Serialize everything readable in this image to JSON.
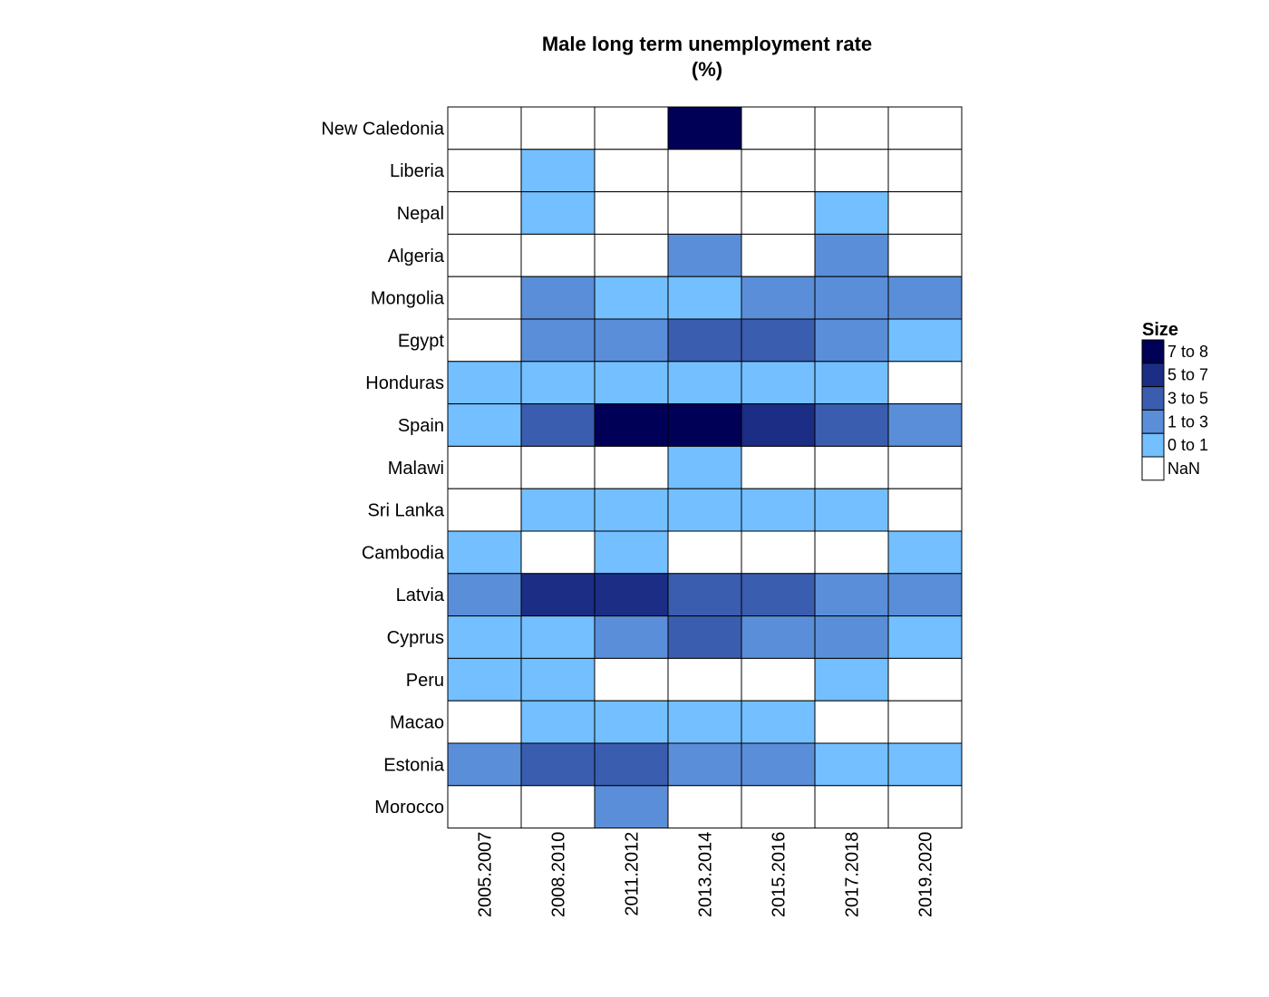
{
  "chart_data": {
    "type": "heatmap",
    "title_line1": "Male long term unemployment rate",
    "title_line2": "(%)",
    "x": [
      "2005.2007",
      "2008.2010",
      "2011.2012",
      "2013.2014",
      "2015.2016",
      "2017.2018",
      "2019.2020"
    ],
    "y": [
      "New Caledonia",
      "Liberia",
      "Nepal",
      "Algeria",
      "Mongolia",
      "Egypt",
      "Honduras",
      "Spain",
      "Malawi",
      "Sri Lanka",
      "Cambodia",
      "Latvia",
      "Cyprus",
      "Peru",
      "Macao",
      "Estonia",
      "Morocco"
    ],
    "cells": [
      [
        "NaN",
        "NaN",
        "NaN",
        "7 to 8",
        "NaN",
        "NaN",
        "NaN"
      ],
      [
        "NaN",
        "0 to 1",
        "NaN",
        "NaN",
        "NaN",
        "NaN",
        "NaN"
      ],
      [
        "NaN",
        "0 to 1",
        "NaN",
        "NaN",
        "NaN",
        "0 to 1",
        "NaN"
      ],
      [
        "NaN",
        "NaN",
        "NaN",
        "1 to 3",
        "NaN",
        "1 to 3",
        "NaN"
      ],
      [
        "NaN",
        "1 to 3",
        "0 to 1",
        "0 to 1",
        "1 to 3",
        "1 to 3",
        "1 to 3"
      ],
      [
        "NaN",
        "1 to 3",
        "1 to 3",
        "3 to 5",
        "3 to 5",
        "1 to 3",
        "0 to 1"
      ],
      [
        "0 to 1",
        "0 to 1",
        "0 to 1",
        "0 to 1",
        "0 to 1",
        "0 to 1",
        "NaN"
      ],
      [
        "0 to 1",
        "3 to 5",
        "7 to 8",
        "7 to 8",
        "5 to 7",
        "3 to 5",
        "1 to 3"
      ],
      [
        "NaN",
        "NaN",
        "NaN",
        "0 to 1",
        "NaN",
        "NaN",
        "NaN"
      ],
      [
        "NaN",
        "0 to 1",
        "0 to 1",
        "0 to 1",
        "0 to 1",
        "0 to 1",
        "NaN"
      ],
      [
        "0 to 1",
        "NaN",
        "0 to 1",
        "NaN",
        "NaN",
        "NaN",
        "0 to 1"
      ],
      [
        "1 to 3",
        "5 to 7",
        "5 to 7",
        "3 to 5",
        "3 to 5",
        "1 to 3",
        "1 to 3"
      ],
      [
        "0 to 1",
        "0 to 1",
        "1 to 3",
        "3 to 5",
        "1 to 3",
        "1 to 3",
        "0 to 1"
      ],
      [
        "0 to 1",
        "0 to 1",
        "NaN",
        "NaN",
        "NaN",
        "0 to 1",
        "NaN"
      ],
      [
        "NaN",
        "0 to 1",
        "0 to 1",
        "0 to 1",
        "0 to 1",
        "NaN",
        "NaN"
      ],
      [
        "1 to 3",
        "3 to 5",
        "3 to 5",
        "1 to 3",
        "1 to 3",
        "0 to 1",
        "0 to 1"
      ],
      [
        "NaN",
        "NaN",
        "1 to 3",
        "NaN",
        "NaN",
        "NaN",
        "NaN"
      ]
    ],
    "legend": {
      "title": "Size",
      "placement": "right",
      "items": [
        {
          "label": "7 to 8",
          "color": "#000057"
        },
        {
          "label": "5 to 7",
          "color": "#1b2d85"
        },
        {
          "label": "3 to 5",
          "color": "#3a5daf"
        },
        {
          "label": "1 to 3",
          "color": "#5a8ed8"
        },
        {
          "label": "0 to 1",
          "color": "#73bfff"
        },
        {
          "label": "NaN",
          "color": "#ffffff"
        }
      ]
    }
  }
}
